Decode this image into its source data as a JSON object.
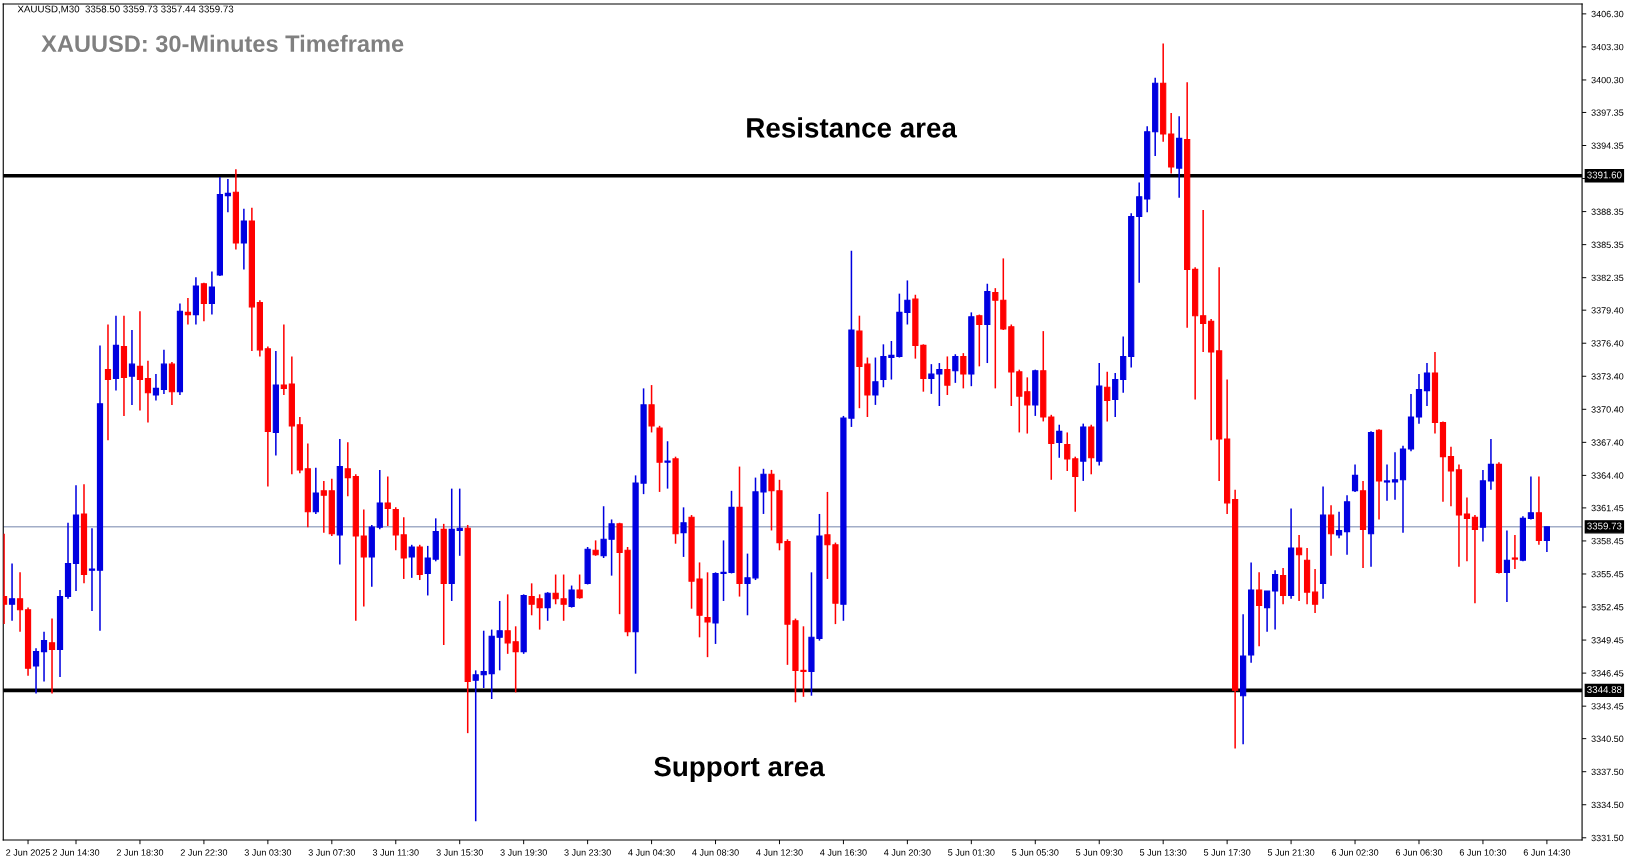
{
  "chart_data": {
    "type": "candlestick",
    "title": "XAUUSD: 30-Minutes Timeframe",
    "annotations": [
      "XAUUSD,M30  3358.50 3359.73 3357.44 3359.73",
      "Resistance area",
      "Support area"
    ],
    "categories": [
      null,
      null,
      null,
      "2 Jun 2025",
      null,
      null,
      null,
      null,
      null,
      "2 Jun 14:30",
      null,
      null,
      null,
      null,
      null,
      null,
      null,
      "2 Jun 18:30",
      null,
      null,
      null,
      null,
      null,
      null,
      null,
      "2 Jun 22:30",
      null,
      null,
      null,
      null,
      null,
      null,
      null,
      "3 Jun 03:30",
      null,
      null,
      null,
      null,
      null,
      null,
      null,
      "3 Jun 07:30",
      null,
      null,
      null,
      null,
      null,
      null,
      null,
      "3 Jun 11:30",
      null,
      null,
      null,
      null,
      null,
      null,
      null,
      "3 Jun 15:30",
      null,
      null,
      null,
      null,
      null,
      null,
      null,
      "3 Jun 19:30",
      null,
      null,
      null,
      null,
      null,
      null,
      null,
      "3 Jun 23:30",
      null,
      null,
      null,
      null,
      null,
      null,
      null,
      "4 Jun 04:30",
      null,
      null,
      null,
      null,
      null,
      null,
      null,
      "4 Jun 08:30",
      null,
      null,
      null,
      null,
      null,
      null,
      null,
      "4 Jun 12:30",
      null,
      null,
      null,
      null,
      null,
      null,
      null,
      "4 Jun 16:30",
      null,
      null,
      null,
      null,
      null,
      null,
      null,
      "4 Jun 20:30",
      null,
      null,
      null,
      null,
      null,
      null,
      null,
      "5 Jun 01:30",
      null,
      null,
      null,
      null,
      null,
      null,
      null,
      "5 Jun 05:30",
      null,
      null,
      null,
      null,
      null,
      null,
      null,
      "5 Jun 09:30",
      null,
      null,
      null,
      null,
      null,
      null,
      null,
      "5 Jun 13:30",
      null,
      null,
      null,
      null,
      null,
      null,
      null,
      "5 Jun 17:30",
      null,
      null,
      null,
      null,
      null,
      null,
      null,
      "5 Jun 21:30",
      null,
      null,
      null,
      null,
      null,
      null,
      null,
      "6 Jun 02:30",
      null,
      null,
      null,
      null,
      null,
      null,
      null,
      "6 Jun 06:30",
      null,
      null,
      null,
      null,
      null,
      null,
      null,
      "6 Jun 10:30",
      null,
      null,
      null,
      null,
      null,
      null,
      null,
      "6 Jun 14:30"
    ],
    "ohlc": [
      [
        3353.4,
        3359.1,
        3350.9,
        3352.7
      ],
      [
        3352.7,
        3356.4,
        3351.2,
        3353.2
      ],
      [
        3353.2,
        3355.6,
        3350.2,
        3352.2
      ],
      [
        3352.2,
        3352.4,
        3346.2,
        3346.9
      ],
      [
        3347.1,
        3348.7,
        3344.6,
        3348.4
      ],
      [
        3348.4,
        3350.2,
        3345.7,
        3349.4
      ],
      [
        3349.2,
        3351.4,
        3344.6,
        3348.6
      ],
      [
        3348.6,
        3354.0,
        3346.1,
        3353.4
      ],
      [
        3353.4,
        3360.1,
        3353.2,
        3356.4
      ],
      [
        3356.4,
        3363.5,
        3353.9,
        3360.8
      ],
      [
        3360.9,
        3363.6,
        3354.6,
        3355.4
      ],
      [
        3355.8,
        3359.6,
        3352.1,
        3355.9
      ],
      [
        3355.8,
        3376.2,
        3350.3,
        3370.9
      ],
      [
        3374.0,
        3378.1,
        3367.6,
        3373.1
      ],
      [
        3373.2,
        3378.9,
        3372.1,
        3376.2
      ],
      [
        3376.1,
        3378.9,
        3369.8,
        3373.3
      ],
      [
        3373.4,
        3377.6,
        3370.8,
        3374.5
      ],
      [
        3374.3,
        3379.3,
        3370.3,
        3373.1
      ],
      [
        3373.2,
        3374.8,
        3369.2,
        3371.9
      ],
      [
        3371.7,
        3373.6,
        3371.2,
        3372.3
      ],
      [
        3372.2,
        3375.8,
        3371.8,
        3374.5
      ],
      [
        3374.5,
        3374.7,
        3370.8,
        3372.0
      ],
      [
        3372.0,
        3380.0,
        3371.7,
        3379.3
      ],
      [
        3379.2,
        3380.5,
        3378.1,
        3379.0
      ],
      [
        3379.0,
        3382.4,
        3378.1,
        3381.6
      ],
      [
        3381.8,
        3381.9,
        3378.4,
        3380.0
      ],
      [
        3380.0,
        3382.9,
        3379.0,
        3381.5
      ],
      [
        3382.6,
        3391.5,
        3382.5,
        3389.9
      ],
      [
        3389.8,
        3391.3,
        3388.3,
        3390.0
      ],
      [
        3390.1,
        3392.2,
        3384.9,
        3385.5
      ],
      [
        3385.5,
        3388.6,
        3383.1,
        3387.5
      ],
      [
        3387.5,
        3388.7,
        3375.7,
        3379.7
      ],
      [
        3380.1,
        3380.3,
        3375.2,
        3375.8
      ],
      [
        3375.9,
        3376.1,
        3363.4,
        3368.4
      ],
      [
        3368.3,
        3375.7,
        3366.2,
        3372.6
      ],
      [
        3372.6,
        3378.1,
        3371.7,
        3372.3
      ],
      [
        3372.7,
        3375.2,
        3364.5,
        3368.9
      ],
      [
        3369.0,
        3369.7,
        3364.6,
        3364.9
      ],
      [
        3365.0,
        3367.3,
        3359.7,
        3361.1
      ],
      [
        3361.1,
        3365.1,
        3360.9,
        3362.8
      ],
      [
        3363.0,
        3363.9,
        3359.2,
        3362.6
      ],
      [
        3363.0,
        3364.1,
        3358.9,
        3359.1
      ],
      [
        3359.0,
        3367.7,
        3356.3,
        3365.2
      ],
      [
        3365.0,
        3367.4,
        3362.5,
        3364.2
      ],
      [
        3364.3,
        3364.5,
        3351.2,
        3358.9
      ],
      [
        3358.9,
        3361.3,
        3352.5,
        3357.0
      ],
      [
        3357.0,
        3359.9,
        3354.3,
        3359.7
      ],
      [
        3359.7,
        3364.9,
        3359.5,
        3361.9
      ],
      [
        3361.9,
        3364.3,
        3359.8,
        3361.4
      ],
      [
        3361.3,
        3361.5,
        3357.6,
        3359.0
      ],
      [
        3359.0,
        3360.6,
        3355.0,
        3356.9
      ],
      [
        3357.0,
        3358.1,
        3355.1,
        3357.9
      ],
      [
        3357.9,
        3358.1,
        3354.9,
        3355.4
      ],
      [
        3355.5,
        3358.0,
        3353.5,
        3356.9
      ],
      [
        3356.8,
        3360.5,
        3356.6,
        3359.3
      ],
      [
        3359.5,
        3360.0,
        3349.0,
        3354.6
      ],
      [
        3354.6,
        3363.2,
        3353.0,
        3359.5
      ],
      [
        3359.4,
        3363.2,
        3357.1,
        3359.6
      ],
      [
        3359.6,
        3359.9,
        3341.0,
        3345.7
      ],
      [
        3345.8,
        3346.7,
        3333.0,
        3346.3
      ],
      [
        3346.3,
        3350.3,
        3345.1,
        3346.6
      ],
      [
        3346.4,
        3350.4,
        3344.1,
        3349.8
      ],
      [
        3349.7,
        3353.0,
        3346.7,
        3350.3
      ],
      [
        3350.3,
        3353.6,
        3348.2,
        3349.2
      ],
      [
        3349.3,
        3350.7,
        3344.7,
        3348.4
      ],
      [
        3348.4,
        3353.6,
        3348.2,
        3353.5
      ],
      [
        3353.4,
        3354.6,
        3351.7,
        3352.7
      ],
      [
        3353.2,
        3353.6,
        3350.4,
        3352.4
      ],
      [
        3352.4,
        3353.8,
        3351.2,
        3353.7
      ],
      [
        3353.7,
        3355.4,
        3352.7,
        3353.2
      ],
      [
        3353.2,
        3355.4,
        3351.2,
        3352.7
      ],
      [
        3352.5,
        3354.4,
        3352.4,
        3354.0
      ],
      [
        3354.0,
        3355.4,
        3353.2,
        3353.3
      ],
      [
        3354.6,
        3357.9,
        3354.5,
        3357.7
      ],
      [
        3357.6,
        3358.5,
        3357.1,
        3357.2
      ],
      [
        3357.1,
        3361.6,
        3356.9,
        3358.6
      ],
      [
        3358.6,
        3360.4,
        3355.3,
        3360.0
      ],
      [
        3360.0,
        3360.1,
        3351.8,
        3357.4
      ],
      [
        3357.6,
        3357.9,
        3349.8,
        3350.2
      ],
      [
        3350.2,
        3364.4,
        3346.4,
        3363.7
      ],
      [
        3363.7,
        3372.3,
        3362.7,
        3370.8
      ],
      [
        3370.8,
        3372.6,
        3368.3,
        3368.9
      ],
      [
        3368.7,
        3368.9,
        3362.9,
        3365.6
      ],
      [
        3365.6,
        3367.5,
        3363.2,
        3365.7
      ],
      [
        3365.9,
        3366.1,
        3358.2,
        3359.1
      ],
      [
        3359.2,
        3361.5,
        3357.0,
        3360.1
      ],
      [
        3360.6,
        3360.8,
        3352.3,
        3354.8
      ],
      [
        3355.0,
        3356.5,
        3349.7,
        3351.7
      ],
      [
        3351.5,
        3355.6,
        3347.9,
        3351.1
      ],
      [
        3351.0,
        3355.6,
        3349.1,
        3355.5
      ],
      [
        3355.5,
        3358.5,
        3353.0,
        3355.6
      ],
      [
        3355.6,
        3363.0,
        3355.5,
        3361.5
      ],
      [
        3361.5,
        3365.2,
        3353.4,
        3354.6
      ],
      [
        3354.6,
        3357.3,
        3351.7,
        3355.1
      ],
      [
        3355.1,
        3364.2,
        3354.9,
        3362.9
      ],
      [
        3362.9,
        3365.0,
        3360.9,
        3364.5
      ],
      [
        3364.5,
        3364.9,
        3359.4,
        3363.0
      ],
      [
        3363.0,
        3364.0,
        3357.6,
        3358.3
      ],
      [
        3358.4,
        3358.6,
        3347.2,
        3350.9
      ],
      [
        3351.2,
        3351.4,
        3343.8,
        3346.7
      ],
      [
        3346.7,
        3350.7,
        3344.3,
        3346.6
      ],
      [
        3346.6,
        3355.6,
        3344.4,
        3349.7
      ],
      [
        3349.6,
        3360.9,
        3349.4,
        3358.9
      ],
      [
        3359.0,
        3362.9,
        3355.0,
        3358.1
      ],
      [
        3358.1,
        3358.3,
        3350.9,
        3352.8
      ],
      [
        3352.7,
        3369.8,
        3351.2,
        3369.6
      ],
      [
        3369.6,
        3384.8,
        3368.8,
        3377.6
      ],
      [
        3377.5,
        3378.9,
        3370.5,
        3374.3
      ],
      [
        3374.5,
        3375.1,
        3369.7,
        3371.7
      ],
      [
        3371.7,
        3375.1,
        3370.8,
        3372.9
      ],
      [
        3373.1,
        3376.3,
        3372.4,
        3375.2
      ],
      [
        3375.1,
        3376.6,
        3373.1,
        3375.3
      ],
      [
        3375.2,
        3380.9,
        3375.1,
        3379.2
      ],
      [
        3379.2,
        3382.1,
        3378.1,
        3380.3
      ],
      [
        3380.4,
        3380.8,
        3375.0,
        3376.2
      ],
      [
        3376.2,
        3376.3,
        3372.0,
        3373.2
      ],
      [
        3373.2,
        3374.5,
        3371.8,
        3373.6
      ],
      [
        3373.6,
        3374.6,
        3370.7,
        3374.0
      ],
      [
        3374.0,
        3375.2,
        3371.7,
        3372.6
      ],
      [
        3373.9,
        3375.4,
        3372.8,
        3375.2
      ],
      [
        3375.2,
        3375.5,
        3372.3,
        3373.6
      ],
      [
        3373.6,
        3379.2,
        3372.5,
        3378.8
      ],
      [
        3378.9,
        3379.0,
        3374.3,
        3378.1
      ],
      [
        3378.1,
        3381.8,
        3374.6,
        3381.1
      ],
      [
        3381.0,
        3381.4,
        3372.3,
        3380.3
      ],
      [
        3380.3,
        3384.1,
        3377.6,
        3377.7
      ],
      [
        3377.9,
        3378.1,
        3370.7,
        3373.8
      ],
      [
        3373.8,
        3374.0,
        3368.3,
        3371.6
      ],
      [
        3372.0,
        3373.3,
        3368.2,
        3370.8
      ],
      [
        3370.8,
        3374.0,
        3369.8,
        3373.9
      ],
      [
        3373.9,
        3377.5,
        3369.3,
        3369.7
      ],
      [
        3369.7,
        3369.9,
        3364.0,
        3367.3
      ],
      [
        3367.4,
        3369.0,
        3366.0,
        3368.4
      ],
      [
        3367.2,
        3368.3,
        3364.8,
        3365.9
      ],
      [
        3365.9,
        3366.1,
        3361.1,
        3364.3
      ],
      [
        3365.7,
        3369.1,
        3363.9,
        3368.8
      ],
      [
        3368.8,
        3369.0,
        3364.5,
        3366.0
      ],
      [
        3365.7,
        3374.6,
        3365.3,
        3372.5
      ],
      [
        3372.4,
        3373.8,
        3369.3,
        3371.2
      ],
      [
        3371.3,
        3373.7,
        3369.7,
        3373.1
      ],
      [
        3373.1,
        3377.0,
        3371.9,
        3375.2
      ],
      [
        3375.2,
        3388.2,
        3374.2,
        3387.9
      ],
      [
        3387.9,
        3391.0,
        3381.9,
        3389.7
      ],
      [
        3389.5,
        3396.1,
        3388.3,
        3395.6
      ],
      [
        3395.6,
        3400.5,
        3393.4,
        3400.0
      ],
      [
        3400.0,
        3403.6,
        3394.7,
        3395.4
      ],
      [
        3395.4,
        3397.3,
        3391.8,
        3392.4
      ],
      [
        3392.3,
        3397.0,
        3389.6,
        3395.0
      ],
      [
        3394.9,
        3400.1,
        3377.8,
        3383.1
      ],
      [
        3383.1,
        3383.3,
        3371.3,
        3378.9
      ],
      [
        3378.9,
        3388.5,
        3375.6,
        3378.2
      ],
      [
        3378.4,
        3378.6,
        3367.6,
        3375.6
      ],
      [
        3375.7,
        3383.3,
        3363.9,
        3367.7
      ],
      [
        3367.7,
        3373.1,
        3360.9,
        3361.9
      ],
      [
        3362.2,
        3363.1,
        3339.6,
        3344.9
      ],
      [
        3344.4,
        3351.8,
        3340.0,
        3348.0
      ],
      [
        3348.1,
        3356.5,
        3347.4,
        3354.0
      ],
      [
        3354.0,
        3355.6,
        3348.9,
        3352.6
      ],
      [
        3352.4,
        3353.9,
        3350.2,
        3353.9
      ],
      [
        3353.9,
        3355.8,
        3350.4,
        3355.4
      ],
      [
        3355.3,
        3356.0,
        3352.7,
        3353.5
      ],
      [
        3353.5,
        3361.4,
        3353.2,
        3357.8
      ],
      [
        3357.8,
        3359.0,
        3353.0,
        3357.2
      ],
      [
        3356.7,
        3357.8,
        3352.7,
        3353.8
      ],
      [
        3353.8,
        3355.9,
        3351.9,
        3352.7
      ],
      [
        3354.6,
        3363.4,
        3353.2,
        3360.8
      ],
      [
        3360.8,
        3361.7,
        3357.1,
        3359.1
      ],
      [
        3359.0,
        3361.1,
        3358.7,
        3359.4
      ],
      [
        3359.3,
        3362.6,
        3357.2,
        3362.0
      ],
      [
        3363.0,
        3365.4,
        3362.9,
        3364.4
      ],
      [
        3363.0,
        3363.9,
        3356.0,
        3359.5
      ],
      [
        3359.1,
        3368.4,
        3356.1,
        3368.3
      ],
      [
        3368.5,
        3368.6,
        3360.4,
        3363.9
      ],
      [
        3363.8,
        3365.4,
        3362.1,
        3363.9
      ],
      [
        3363.8,
        3366.5,
        3362.2,
        3364.0
      ],
      [
        3364.0,
        3367.1,
        3359.2,
        3366.8
      ],
      [
        3366.8,
        3371.8,
        3366.6,
        3369.7
      ],
      [
        3369.7,
        3373.6,
        3369.1,
        3372.2
      ],
      [
        3372.1,
        3374.6,
        3370.7,
        3373.7
      ],
      [
        3373.7,
        3375.6,
        3368.2,
        3369.2
      ],
      [
        3369.2,
        3369.3,
        3362.0,
        3366.1
      ],
      [
        3366.1,
        3367.0,
        3361.6,
        3364.8
      ],
      [
        3364.9,
        3365.4,
        3356.1,
        3360.8
      ],
      [
        3360.9,
        3362.4,
        3356.6,
        3360.5
      ],
      [
        3360.6,
        3360.8,
        3352.8,
        3359.5
      ],
      [
        3359.7,
        3364.9,
        3358.4,
        3363.9
      ],
      [
        3363.9,
        3367.7,
        3363.1,
        3365.4
      ],
      [
        3365.4,
        3365.6,
        3355.5,
        3355.6
      ],
      [
        3355.6,
        3359.4,
        3352.9,
        3356.7
      ],
      [
        3356.9,
        3359.0,
        3355.9,
        3356.8
      ],
      [
        3356.7,
        3360.7,
        3356.6,
        3360.5
      ],
      [
        3360.5,
        3364.3,
        3360.4,
        3361.0
      ],
      [
        3361.0,
        3364.3,
        3358.1,
        3358.5
      ],
      [
        3358.5,
        3359.73,
        3357.44,
        3359.73
      ]
    ],
    "colors": [
      "#ff0000",
      "#0000e0",
      "#ff0000",
      "#ff0000",
      "#0000e0",
      "#0000e0",
      "#ff0000",
      "#0000e0",
      "#0000e0",
      "#0000e0",
      "#ff0000",
      "#0000e0",
      "#0000e0",
      "#ff0000",
      "#0000e0",
      "#ff0000",
      "#0000e0",
      "#ff0000",
      "#ff0000",
      "#0000e0",
      "#0000e0",
      "#ff0000",
      "#0000e0",
      "#ff0000",
      "#0000e0",
      "#ff0000",
      "#0000e0",
      "#0000e0",
      "#0000e0",
      "#ff0000",
      "#0000e0",
      "#ff0000",
      "#ff0000",
      "#ff0000",
      "#0000e0",
      "#ff0000",
      "#ff0000",
      "#ff0000",
      "#ff0000",
      "#0000e0",
      "#ff0000",
      "#ff0000",
      "#0000e0",
      "#ff0000",
      "#ff0000",
      "#ff0000",
      "#0000e0",
      "#0000e0",
      "#ff0000",
      "#ff0000",
      "#ff0000",
      "#0000e0",
      "#ff0000",
      "#0000e0",
      "#0000e0",
      "#ff0000",
      "#0000e0",
      "#0000e0",
      "#ff0000",
      "#0000e0",
      "#0000e0",
      "#0000e0",
      "#0000e0",
      "#ff0000",
      "#ff0000",
      "#0000e0",
      "#ff0000",
      "#ff0000",
      "#0000e0",
      "#ff0000",
      "#ff0000",
      "#0000e0",
      "#ff0000",
      "#0000e0",
      "#ff0000",
      "#0000e0",
      "#0000e0",
      "#ff0000",
      "#ff0000",
      "#0000e0",
      "#0000e0",
      "#ff0000",
      "#ff0000",
      "#0000e0",
      "#ff0000",
      "#0000e0",
      "#ff0000",
      "#ff0000",
      "#ff0000",
      "#0000e0",
      "#0000e0",
      "#0000e0",
      "#ff0000",
      "#0000e0",
      "#0000e0",
      "#0000e0",
      "#ff0000",
      "#ff0000",
      "#ff0000",
      "#ff0000",
      "#ff0000",
      "#0000e0",
      "#0000e0",
      "#ff0000",
      "#ff0000",
      "#0000e0",
      "#0000e0",
      "#ff0000",
      "#ff0000",
      "#0000e0",
      "#0000e0",
      "#0000e0",
      "#0000e0",
      "#0000e0",
      "#ff0000",
      "#ff0000",
      "#0000e0",
      "#0000e0",
      "#ff0000",
      "#0000e0",
      "#ff0000",
      "#0000e0",
      "#ff0000",
      "#0000e0",
      "#ff0000",
      "#ff0000",
      "#ff0000",
      "#ff0000",
      "#ff0000",
      "#0000e0",
      "#ff0000",
      "#ff0000",
      "#0000e0",
      "#ff0000",
      "#ff0000",
      "#0000e0",
      "#ff0000",
      "#0000e0",
      "#ff0000",
      "#0000e0",
      "#0000e0",
      "#0000e0",
      "#0000e0",
      "#0000e0",
      "#0000e0",
      "#ff0000",
      "#ff0000",
      "#0000e0",
      "#ff0000",
      "#ff0000",
      "#ff0000",
      "#ff0000",
      "#ff0000",
      "#ff0000",
      "#ff0000",
      "#0000e0",
      "#0000e0",
      "#ff0000",
      "#0000e0",
      "#0000e0",
      "#ff0000",
      "#0000e0",
      "#ff0000",
      "#ff0000",
      "#ff0000",
      "#0000e0",
      "#ff0000",
      "#0000e0",
      "#0000e0",
      "#0000e0",
      "#ff0000",
      "#0000e0",
      "#ff0000",
      "#0000e0",
      "#0000e0",
      "#0000e0",
      "#0000e0",
      "#0000e0",
      "#0000e0",
      "#ff0000",
      "#ff0000",
      "#ff0000",
      "#ff0000",
      "#ff0000",
      "#ff0000",
      "#0000e0",
      "#0000e0",
      "#ff0000",
      "#0000e0",
      "#ff0000",
      "#0000e0",
      "#0000e0",
      "#ff0000",
      "#0000e0"
    ],
    "ylim": [
      3331.3,
      3407.2
    ],
    "yticks": [
      {
        "value": 3406.3,
        "label": "3406.30"
      },
      {
        "value": 3403.3,
        "label": "3403.30"
      },
      {
        "value": 3400.3,
        "label": "3400.30"
      },
      {
        "value": 3397.35,
        "label": "3397.35"
      },
      {
        "value": 3394.35,
        "label": "3394.35"
      },
      {
        "value": 3391.35,
        "label": null
      },
      {
        "value": 3388.35,
        "label": "3388.35"
      },
      {
        "value": 3385.35,
        "label": "3385.35"
      },
      {
        "value": 3382.35,
        "label": "3382.35"
      },
      {
        "value": 3379.4,
        "label": "3379.40"
      },
      {
        "value": 3376.4,
        "label": "3376.40"
      },
      {
        "value": 3373.4,
        "label": "3373.40"
      },
      {
        "value": 3370.4,
        "label": "3370.40"
      },
      {
        "value": 3367.4,
        "label": "3367.40"
      },
      {
        "value": 3364.4,
        "label": "3364.40"
      },
      {
        "value": 3361.45,
        "label": "3361.45"
      },
      {
        "value": 3358.45,
        "label": "3358.45"
      },
      {
        "value": 3355.45,
        "label": "3355.45"
      },
      {
        "value": 3352.45,
        "label": "3352.45"
      },
      {
        "value": 3349.45,
        "label": "3349.45"
      },
      {
        "value": 3346.45,
        "label": "3346.45"
      },
      {
        "value": 3343.45,
        "label": "3343.45"
      },
      {
        "value": 3340.5,
        "label": "3340.50"
      },
      {
        "value": 3337.5,
        "label": "3337.50"
      },
      {
        "value": 3334.5,
        "label": "3334.50"
      },
      {
        "value": 3331.5,
        "label": "3331.50"
      }
    ],
    "ref_lines": [
      {
        "axis": "y",
        "value": 3391.6,
        "label": "3391.60",
        "color": "#000000",
        "line_style": "solid"
      },
      {
        "axis": "y",
        "value": 3344.88,
        "label": "3344.88",
        "color": "#000000",
        "line_style": "solid"
      },
      {
        "axis": "y",
        "value": 3359.73,
        "label": "3359.73",
        "color": "#7080a8",
        "line_style": "solid"
      }
    ],
    "grid": false,
    "legend": false
  }
}
